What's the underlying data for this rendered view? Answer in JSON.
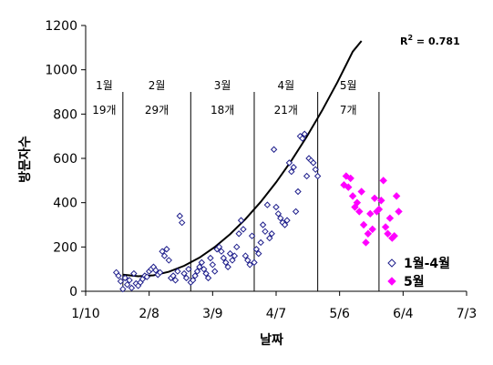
{
  "chart_data": {
    "type": "scatter",
    "xlabel": "날짜",
    "ylabel": "방문자수",
    "x_tick_labels": [
      "1/10",
      "2/8",
      "3/9",
      "4/7",
      "5/6",
      "6/4",
      "7/3"
    ],
    "x_ticks": [
      "2005-01-10",
      "2005-02-08",
      "2005-03-09",
      "2005-04-07",
      "2005-05-06",
      "2005-06-04",
      "2005-07-03"
    ],
    "ylim": [
      0,
      1200
    ],
    "y_ticks": [
      0,
      200,
      400,
      600,
      800,
      1000,
      1200
    ],
    "grid": false,
    "legend_position": "bottom-right",
    "trendline": {
      "type": "polynomial",
      "r_squared_base": "R",
      "r_squared_exp": "2",
      "r_squared_value": " = 0.781"
    },
    "month_dividers": [
      "2005-01-27",
      "2005-02-27",
      "2005-03-28",
      "2005-04-26",
      "2005-05-24"
    ],
    "month_labels": [
      {
        "month": "1월",
        "count": "19개"
      },
      {
        "month": "2월",
        "count": "29개"
      },
      {
        "month": "3월",
        "count": "18개"
      },
      {
        "month": "4월",
        "count": "21개"
      },
      {
        "month": "5월",
        "count": "7개"
      }
    ],
    "series": [
      {
        "name": "1월-4월",
        "marker": "diamond-open",
        "color": "#1f1f8c",
        "points": [
          [
            "2005-01-24",
            85
          ],
          [
            "2005-01-25",
            70
          ],
          [
            "2005-01-26",
            45
          ],
          [
            "2005-01-27",
            10
          ],
          [
            "2005-01-28",
            60
          ],
          [
            "2005-01-29",
            30
          ],
          [
            "2005-01-30",
            50
          ],
          [
            "2005-01-31",
            15
          ],
          [
            "2005-02-01",
            80
          ],
          [
            "2005-02-02",
            35
          ],
          [
            "2005-02-03",
            25
          ],
          [
            "2005-02-04",
            40
          ],
          [
            "2005-02-05",
            55
          ],
          [
            "2005-02-06",
            70
          ],
          [
            "2005-02-07",
            65
          ],
          [
            "2005-02-08",
            90
          ],
          [
            "2005-02-09",
            100
          ],
          [
            "2005-02-10",
            110
          ],
          [
            "2005-02-11",
            95
          ],
          [
            "2005-02-12",
            75
          ],
          [
            "2005-02-13",
            85
          ],
          [
            "2005-02-14",
            180
          ],
          [
            "2005-02-15",
            160
          ],
          [
            "2005-02-16",
            190
          ],
          [
            "2005-02-17",
            140
          ],
          [
            "2005-02-18",
            60
          ],
          [
            "2005-02-19",
            70
          ],
          [
            "2005-02-20",
            50
          ],
          [
            "2005-02-21",
            90
          ],
          [
            "2005-02-22",
            340
          ],
          [
            "2005-02-23",
            310
          ],
          [
            "2005-02-24",
            80
          ],
          [
            "2005-02-25",
            60
          ],
          [
            "2005-02-26",
            100
          ],
          [
            "2005-02-27",
            40
          ],
          [
            "2005-02-28",
            50
          ],
          [
            "2005-03-01",
            70
          ],
          [
            "2005-03-02",
            90
          ],
          [
            "2005-03-03",
            110
          ],
          [
            "2005-03-04",
            130
          ],
          [
            "2005-03-05",
            100
          ],
          [
            "2005-03-06",
            80
          ],
          [
            "2005-03-07",
            60
          ],
          [
            "2005-03-08",
            150
          ],
          [
            "2005-03-09",
            120
          ],
          [
            "2005-03-10",
            90
          ],
          [
            "2005-03-11",
            190
          ],
          [
            "2005-03-12",
            200
          ],
          [
            "2005-03-13",
            180
          ],
          [
            "2005-03-14",
            150
          ],
          [
            "2005-03-15",
            130
          ],
          [
            "2005-03-16",
            110
          ],
          [
            "2005-03-17",
            170
          ],
          [
            "2005-03-18",
            140
          ],
          [
            "2005-03-19",
            160
          ],
          [
            "2005-03-20",
            200
          ],
          [
            "2005-03-21",
            260
          ],
          [
            "2005-03-22",
            320
          ],
          [
            "2005-03-23",
            280
          ],
          [
            "2005-03-24",
            160
          ],
          [
            "2005-03-25",
            140
          ],
          [
            "2005-03-26",
            120
          ],
          [
            "2005-03-27",
            250
          ],
          [
            "2005-03-28",
            130
          ],
          [
            "2005-03-29",
            190
          ],
          [
            "2005-03-30",
            170
          ],
          [
            "2005-03-31",
            220
          ],
          [
            "2005-04-01",
            300
          ],
          [
            "2005-04-02",
            270
          ],
          [
            "2005-04-03",
            390
          ],
          [
            "2005-04-04",
            240
          ],
          [
            "2005-04-05",
            260
          ],
          [
            "2005-04-06",
            640
          ],
          [
            "2005-04-07",
            380
          ],
          [
            "2005-04-08",
            350
          ],
          [
            "2005-04-09",
            330
          ],
          [
            "2005-04-10",
            310
          ],
          [
            "2005-04-11",
            300
          ],
          [
            "2005-04-12",
            320
          ],
          [
            "2005-04-13",
            580
          ],
          [
            "2005-04-14",
            540
          ],
          [
            "2005-04-15",
            560
          ],
          [
            "2005-04-16",
            360
          ],
          [
            "2005-04-17",
            450
          ],
          [
            "2005-04-18",
            700
          ],
          [
            "2005-04-19",
            690
          ],
          [
            "2005-04-20",
            710
          ],
          [
            "2005-04-21",
            520
          ],
          [
            "2005-04-22",
            600
          ],
          [
            "2005-04-23",
            590
          ],
          [
            "2005-04-24",
            580
          ],
          [
            "2005-04-25",
            550
          ],
          [
            "2005-04-26",
            520
          ]
        ]
      },
      {
        "name": "5월",
        "marker": "diamond-filled",
        "color": "#ff00ff",
        "points": [
          [
            "2005-05-08",
            480
          ],
          [
            "2005-05-09",
            520
          ],
          [
            "2005-05-10",
            470
          ],
          [
            "2005-05-11",
            510
          ],
          [
            "2005-05-12",
            430
          ],
          [
            "2005-05-13",
            380
          ],
          [
            "2005-05-14",
            400
          ],
          [
            "2005-05-15",
            360
          ],
          [
            "2005-05-16",
            450
          ],
          [
            "2005-05-17",
            300
          ],
          [
            "2005-05-18",
            220
          ],
          [
            "2005-05-19",
            260
          ],
          [
            "2005-05-20",
            350
          ],
          [
            "2005-05-21",
            280
          ],
          [
            "2005-05-22",
            420
          ],
          [
            "2005-05-23",
            360
          ],
          [
            "2005-05-24",
            370
          ],
          [
            "2005-05-25",
            410
          ],
          [
            "2005-05-26",
            500
          ],
          [
            "2005-05-27",
            290
          ],
          [
            "2005-05-28",
            260
          ],
          [
            "2005-05-29",
            330
          ],
          [
            "2005-05-30",
            240
          ],
          [
            "2005-05-31",
            250
          ],
          [
            "2005-06-01",
            430
          ],
          [
            "2005-06-02",
            360
          ]
        ]
      }
    ],
    "trend_curve": [
      [
        "2005-01-27",
        75
      ],
      [
        "2005-02-03",
        68
      ],
      [
        "2005-02-10",
        72
      ],
      [
        "2005-02-17",
        88
      ],
      [
        "2005-02-24",
        115
      ],
      [
        "2005-03-03",
        152
      ],
      [
        "2005-03-10",
        200
      ],
      [
        "2005-03-17",
        258
      ],
      [
        "2005-03-24",
        326
      ],
      [
        "2005-03-31",
        404
      ],
      [
        "2005-04-07",
        492
      ],
      [
        "2005-04-14",
        590
      ],
      [
        "2005-04-21",
        698
      ],
      [
        "2005-04-28",
        816
      ],
      [
        "2005-05-05",
        944
      ],
      [
        "2005-05-12",
        1082
      ],
      [
        "2005-05-16",
        1130
      ]
    ]
  }
}
